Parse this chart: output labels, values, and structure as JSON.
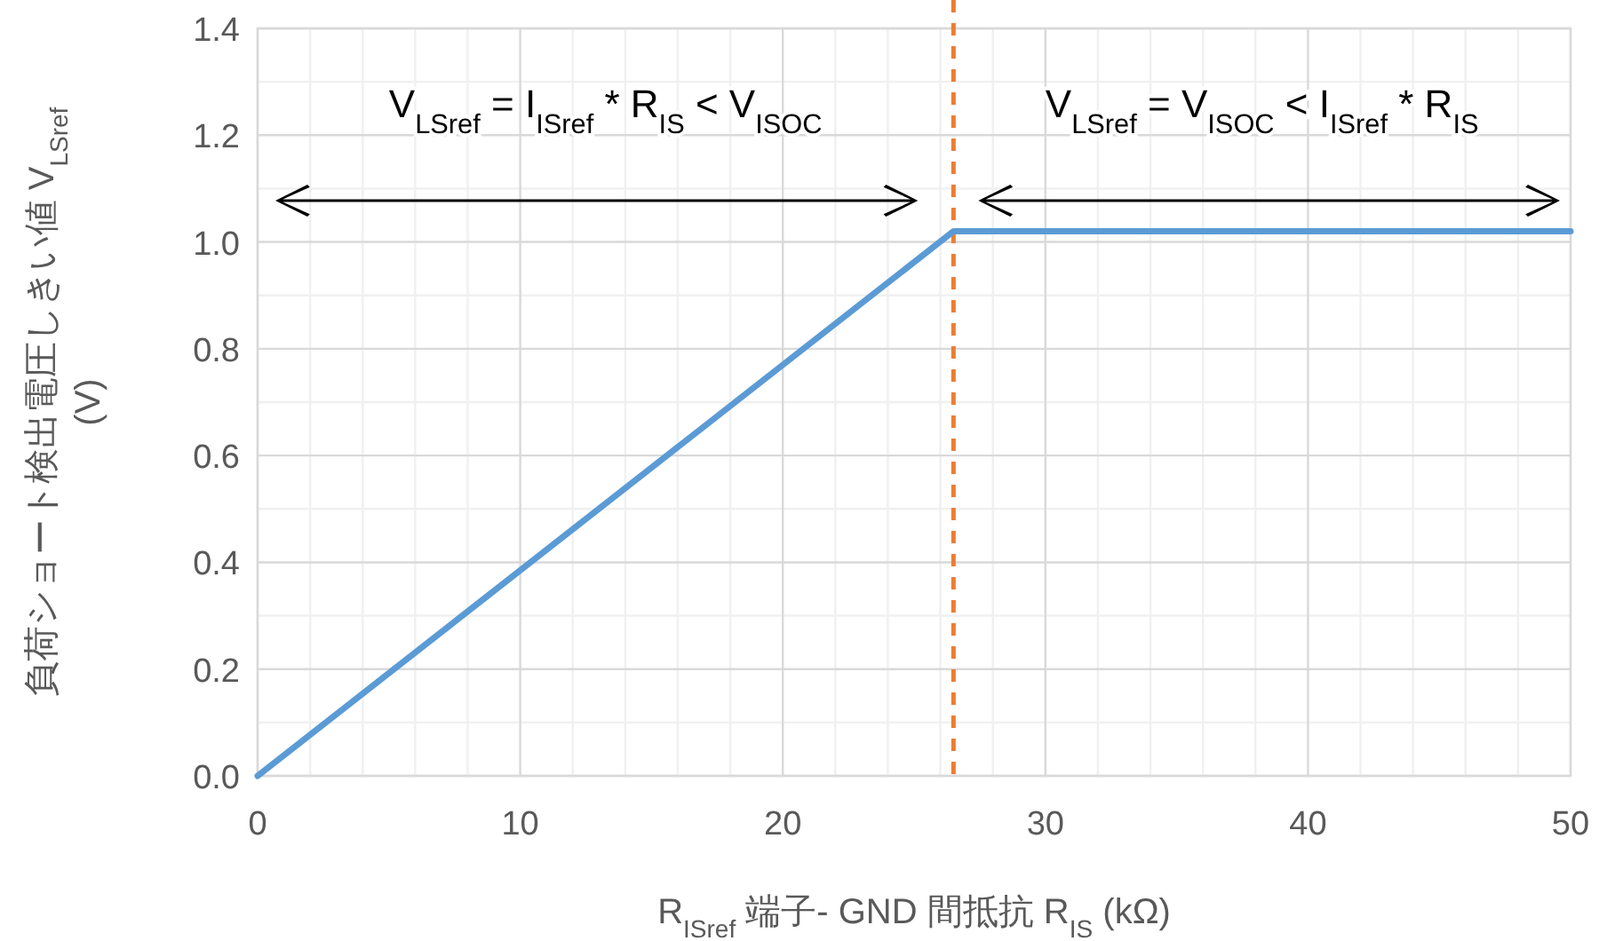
{
  "chart_data": {
    "type": "line",
    "x": [
      0,
      26.5,
      50
    ],
    "series": [
      {
        "color": "#5b9bd5",
        "values": [
          0,
          1.02,
          1.02
        ]
      }
    ],
    "xlim": [
      0,
      50
    ],
    "ylim": [
      0,
      1.4
    ],
    "xticks": [
      0,
      10,
      20,
      30,
      40,
      50
    ],
    "yticks": [
      {
        "value": 0,
        "label": "0.0"
      },
      {
        "value": 0.2,
        "label": "0.2"
      },
      {
        "value": 0.4,
        "label": "0.4"
      },
      {
        "value": 0.6,
        "label": "0.6"
      },
      {
        "value": 0.8,
        "label": "0.8"
      },
      {
        "value": 1.0,
        "label": "1.0"
      },
      {
        "value": 1.2,
        "label": "1.2"
      },
      {
        "value": 1.4,
        "label": "1.4"
      }
    ],
    "xlabel": "R$_{ISref}$ 端子- GND 間抵抗 R$_{IS}$ (kΩ)",
    "ylabel": "負荷ショート検出電圧しきい値 V$_{LSref}$ (V)",
    "grid": true,
    "ref_lines": [
      {
        "axis": "x",
        "value": 26.5,
        "color": "#ed7d31",
        "line_style": "dashed"
      }
    ],
    "annotations": [
      "V$_{LSref}$ = I$_{ISref}$ * R$_{IS}$ < V$_{ISOC}$",
      "V$_{LSref}$ = V$_{ISOC}$ < I$_{ISref}$ * R$_{IS}$"
    ]
  }
}
